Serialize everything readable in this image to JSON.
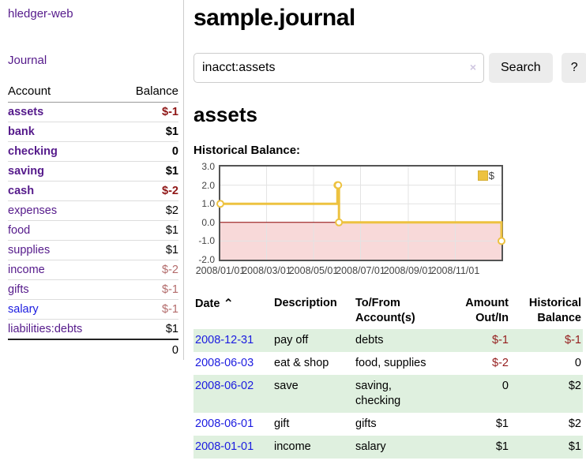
{
  "app": {
    "title": "hledger-web"
  },
  "sidebar": {
    "nav": {
      "journal_label": "Journal"
    },
    "accounts": {
      "headers": {
        "account": "Account",
        "balance": "Balance"
      },
      "rows": [
        {
          "name": "assets",
          "balance": "$-1",
          "depth": 1,
          "bold": true,
          "neg": "strong"
        },
        {
          "name": "bank",
          "balance": "$1",
          "depth": 2,
          "bold": true,
          "neg": null
        },
        {
          "name": "checking",
          "balance": "0",
          "depth": 3,
          "bold": true,
          "neg": null
        },
        {
          "name": "saving",
          "balance": "$1",
          "depth": 3,
          "bold": true,
          "neg": null
        },
        {
          "name": "cash",
          "balance": "$-2",
          "depth": 2,
          "bold": true,
          "neg": "strong"
        },
        {
          "name": "expenses",
          "balance": "$2",
          "depth": 1,
          "bold": false,
          "neg": null
        },
        {
          "name": "food",
          "balance": "$1",
          "depth": 2,
          "bold": false,
          "neg": null
        },
        {
          "name": "supplies",
          "balance": "$1",
          "depth": 2,
          "bold": false,
          "neg": null
        },
        {
          "name": "income",
          "balance": "$-2",
          "depth": 1,
          "bold": false,
          "neg": "muted"
        },
        {
          "name": "gifts",
          "balance": "$-1",
          "depth": 2,
          "bold": false,
          "neg": "muted"
        },
        {
          "name": "salary",
          "balance": "$-1",
          "depth": 2,
          "bold": false,
          "neg": "muted",
          "unvisited": true
        },
        {
          "name": "liabilities:debts",
          "balance": "$1",
          "depth": 1,
          "bold": false,
          "neg": null
        }
      ],
      "total": "0"
    }
  },
  "main": {
    "title": "sample.journal",
    "search": {
      "value": "inacct:assets",
      "clear_icon": "×",
      "button_label": "Search",
      "help_label": "?"
    },
    "account_heading": "assets",
    "chart_label": "Historical Balance:"
  },
  "chart_data": {
    "type": "line",
    "step": true,
    "title": "Historical Balance",
    "xlim": [
      "2008-01-01",
      "2008-12-31"
    ],
    "ylim": [
      -2,
      3
    ],
    "y_ticks": [
      "3.0",
      "2.0",
      "1.0",
      "0.0",
      "-1.0",
      "-2.0"
    ],
    "x_ticks": [
      "2008/01/01",
      "2008/03/01",
      "2008/05/01",
      "2008/07/01",
      "2008/09/01",
      "2008/11/01"
    ],
    "grid": true,
    "legend_position": "top-right",
    "negative_region_color": "#f8d9d9",
    "zero_line_color": "#8b0000",
    "grid_color": "#e3e3e3",
    "series": [
      {
        "name": "$",
        "color": "#edc240",
        "points": [
          [
            "2008-01-01",
            1
          ],
          [
            "2008-06-01",
            2
          ],
          [
            "2008-06-02",
            2
          ],
          [
            "2008-06-03",
            0
          ],
          [
            "2008-12-31",
            -1
          ]
        ]
      }
    ]
  },
  "transactions": {
    "headers": {
      "date": "Date",
      "sort_caret": "⌃",
      "description": "Description",
      "accounts": "To/From\nAccount(s)",
      "amount": "Amount\nOut/In",
      "balance": "Historical\nBalance"
    },
    "rows": [
      {
        "date": "2008-12-31",
        "description": "pay off",
        "accounts": "debts",
        "amount": "$-1",
        "balance": "$-1",
        "amount_neg": true,
        "balance_neg": true
      },
      {
        "date": "2008-06-03",
        "description": "eat & shop",
        "accounts": "food, supplies",
        "amount": "$-2",
        "balance": "0",
        "amount_neg": true,
        "balance_neg": false
      },
      {
        "date": "2008-06-02",
        "description": "save",
        "accounts": "saving,\nchecking",
        "amount": "0",
        "balance": "$2",
        "amount_neg": false,
        "balance_neg": false
      },
      {
        "date": "2008-06-01",
        "description": "gift",
        "accounts": "gifts",
        "amount": "$1",
        "balance": "$2",
        "amount_neg": false,
        "balance_neg": false
      },
      {
        "date": "2008-01-01",
        "description": "income",
        "accounts": "salary",
        "amount": "$1",
        "balance": "$1",
        "amount_neg": false,
        "balance_neg": false
      }
    ]
  }
}
